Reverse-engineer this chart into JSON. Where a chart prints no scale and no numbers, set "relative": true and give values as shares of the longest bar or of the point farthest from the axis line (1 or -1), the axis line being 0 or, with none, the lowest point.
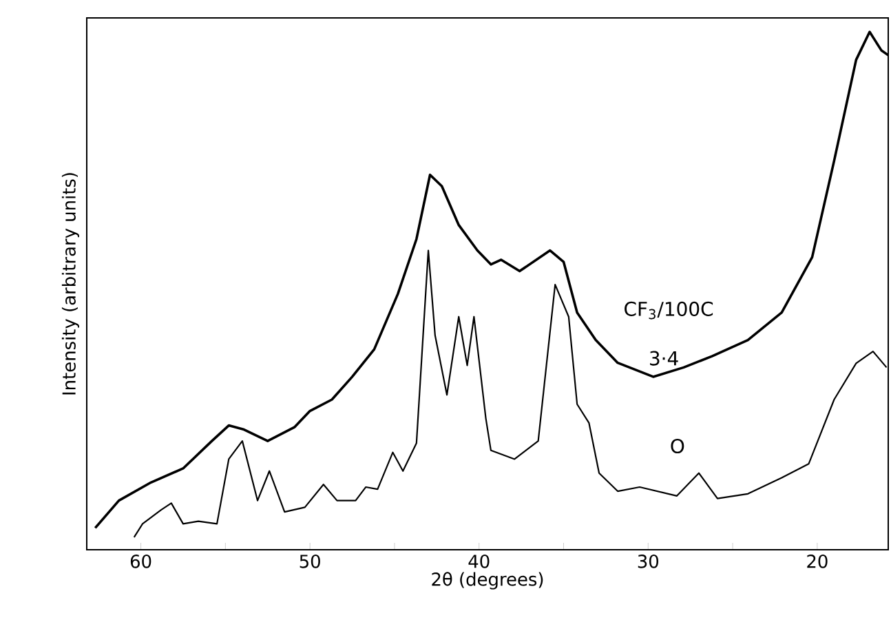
{
  "chart_data": {
    "type": "line",
    "relative": true,
    "xlabel": "2θ (degrees)",
    "ylabel": "Intensity (arbitrary units)",
    "xlim": [
      63.2,
      15.8
    ],
    "xticks": [
      60,
      {
        "value": 55,
        "label": null
      },
      50,
      {
        "value": 45,
        "label": null
      },
      40,
      {
        "value": 35,
        "label": null
      },
      30,
      {
        "value": 25,
        "label": null
      },
      20
    ],
    "tick_labels": "x",
    "marker": "none",
    "line_style": "solid",
    "annotations": [
      "CF$_{3}$/100C",
      "3·4",
      "O"
    ],
    "series": [
      {
        "color": "#000000",
        "x": [
          62.7,
          61.3,
          59.4,
          57.5,
          55.8,
          54.8,
          53.9,
          52.5,
          50.9,
          50.0,
          48.7,
          47.5,
          46.2,
          44.8,
          43.7,
          42.9,
          42.2,
          41.2,
          40.1,
          39.3,
          38.7,
          37.6,
          35.8,
          35.0,
          34.2,
          33.1,
          31.8,
          29.7,
          27.9,
          26.2,
          24.1,
          22.1,
          20.3,
          19.0,
          17.7,
          16.9,
          16.2,
          15.8
        ],
        "values": [
          0.042,
          0.095,
          0.13,
          0.157,
          0.21,
          0.24,
          0.232,
          0.21,
          0.237,
          0.268,
          0.29,
          0.334,
          0.387,
          0.494,
          0.6,
          0.724,
          0.702,
          0.627,
          0.578,
          0.551,
          0.56,
          0.538,
          0.578,
          0.556,
          0.458,
          0.405,
          0.361,
          0.334,
          0.352,
          0.374,
          0.405,
          0.458,
          0.565,
          0.751,
          0.946,
          1.0,
          0.964,
          0.955
        ]
      },
      {
        "color": "#000000",
        "x": [
          60.4,
          59.9,
          58.8,
          58.2,
          57.5,
          56.6,
          55.5,
          54.8,
          54.0,
          53.1,
          52.4,
          51.5,
          50.3,
          49.2,
          48.4,
          47.3,
          46.7,
          46.0,
          45.1,
          44.5,
          43.7,
          43.0,
          42.6,
          41.9,
          41.2,
          40.7,
          40.3,
          39.6,
          39.3,
          37.9,
          36.5,
          35.5,
          34.7,
          34.2,
          33.5,
          32.9,
          31.8,
          30.5,
          28.3,
          27.0,
          25.9,
          24.1,
          22.1,
          20.5,
          19.0,
          17.7,
          16.7,
          15.9
        ],
        "values": [
          0.024,
          0.05,
          0.077,
          0.09,
          0.05,
          0.055,
          0.05,
          0.175,
          0.21,
          0.095,
          0.152,
          0.073,
          0.082,
          0.126,
          0.095,
          0.095,
          0.121,
          0.117,
          0.188,
          0.152,
          0.206,
          0.578,
          0.414,
          0.299,
          0.45,
          0.356,
          0.45,
          0.254,
          0.192,
          0.175,
          0.21,
          0.512,
          0.45,
          0.281,
          0.245,
          0.148,
          0.113,
          0.121,
          0.104,
          0.148,
          0.099,
          0.108,
          0.139,
          0.166,
          0.29,
          0.36,
          0.383,
          0.352
        ]
      }
    ]
  }
}
